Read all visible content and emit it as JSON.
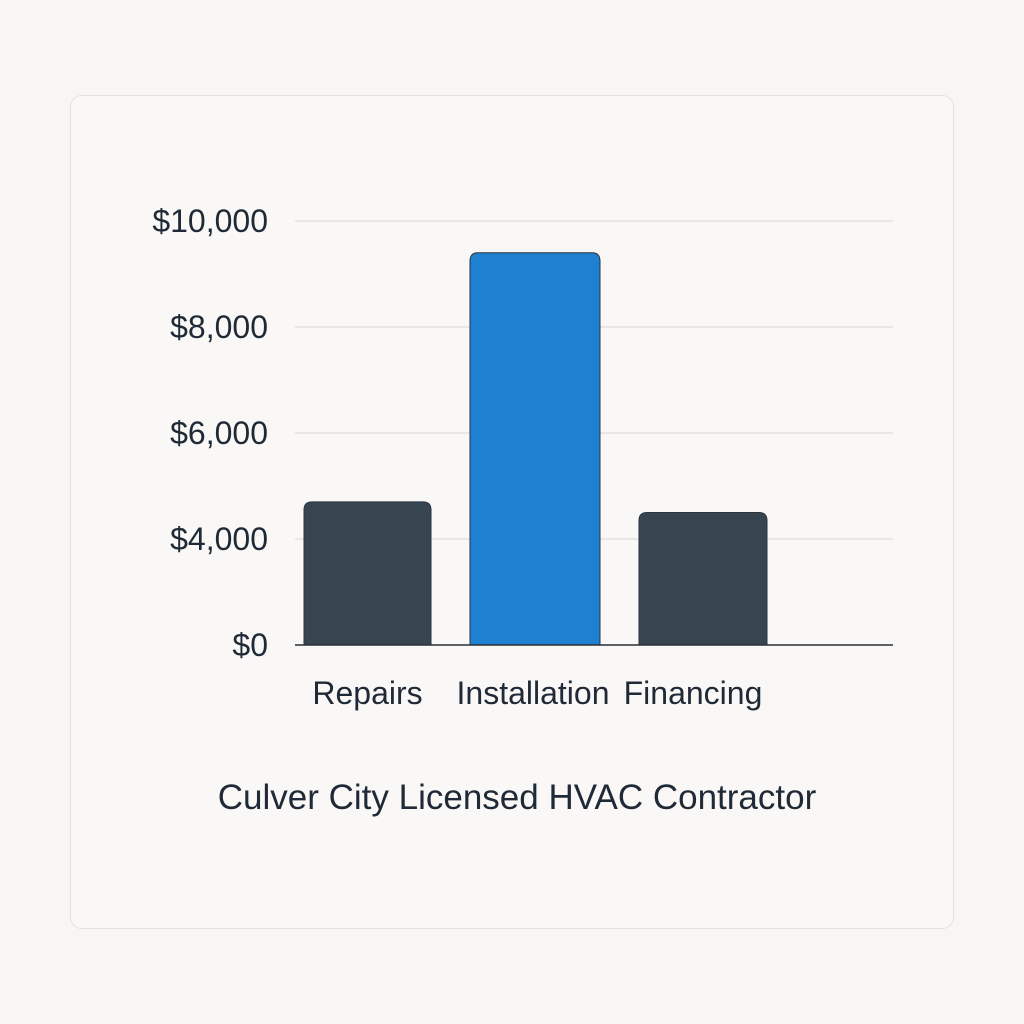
{
  "chart_data": {
    "type": "bar",
    "title": "Culver City Licensed HVAC Contractor",
    "categories": [
      "Repairs",
      "Installation",
      "Financing"
    ],
    "values": [
      4700,
      9400,
      4500
    ],
    "yticks": [
      0,
      4000,
      6000,
      8000,
      10000
    ],
    "ytick_labels": [
      "$0",
      "$4,000",
      "$6,000",
      "$8,000",
      "$10,000"
    ],
    "ylim": [
      0,
      10000
    ],
    "grid": true,
    "legend": "none",
    "colors": [
      "#36454f",
      "#1e80d0",
      "#36454f"
    ],
    "gridline_color": "#e2e1de",
    "axis_color": "#2a2f35"
  }
}
